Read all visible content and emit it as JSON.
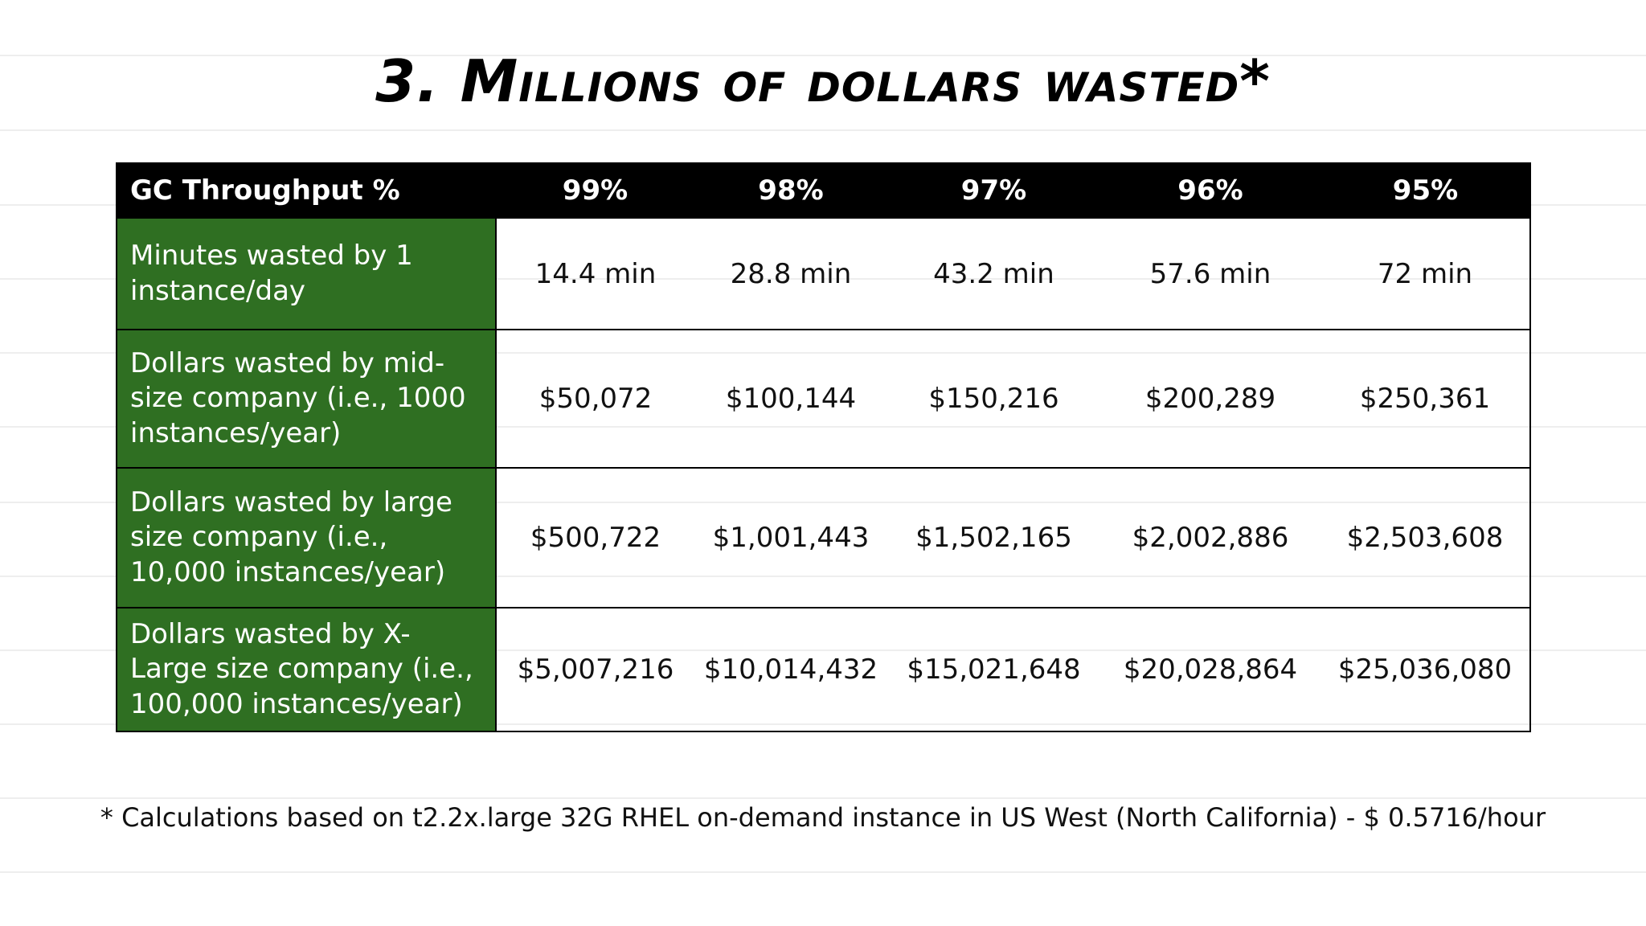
{
  "title": "3. Millions of dollars wasted*",
  "table": {
    "header": {
      "row_label": "GC Throughput %",
      "columns": [
        "99%",
        "98%",
        "97%",
        "96%",
        "95%"
      ]
    },
    "rows": [
      {
        "label": "Minutes wasted by 1 instance/day",
        "cells": [
          "14.4 min",
          "28.8 min",
          "43.2 min",
          "57.6 min",
          "72 min"
        ]
      },
      {
        "label": "Dollars wasted by mid-size company (i.e., 1000 instances/year)",
        "cells": [
          "$50,072",
          "$100,144",
          "$150,216",
          "$200,289",
          "$250,361"
        ]
      },
      {
        "label": "Dollars wasted by large size company (i.e., 10,000 instances/year)",
        "cells": [
          "$500,722",
          "$1,001,443",
          "$1,502,165",
          "$2,002,886",
          "$2,503,608"
        ]
      },
      {
        "label": "Dollars wasted by X-Large size company (i.e., 100,000 instances/year)",
        "cells": [
          "$5,007,216",
          "$10,014,432",
          "$15,021,648",
          "$20,028,864",
          "$25,036,080"
        ]
      }
    ]
  },
  "footnote": "* Calculations based on t2.2x.large 32G RHEL on-demand instance in US West (North California) - $ 0.5716/hour",
  "colors": {
    "header_bg": "#000000",
    "row_label_bg": "#2f6f22",
    "text": "#111111"
  }
}
